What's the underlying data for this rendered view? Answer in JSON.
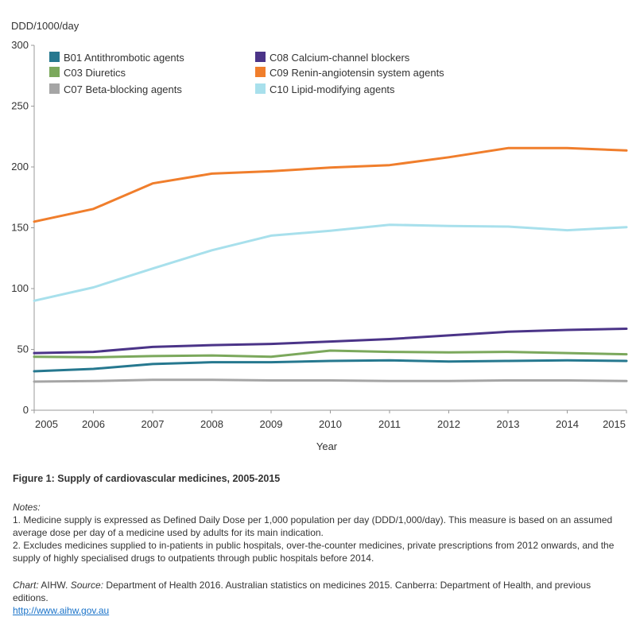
{
  "chart_data": {
    "type": "line",
    "ylabel": "DDD/1000/day",
    "xlabel": "Year",
    "ylim": [
      0,
      300
    ],
    "xlim": [
      2005,
      2015
    ],
    "yticks": [
      0,
      50,
      100,
      150,
      200,
      250,
      300
    ],
    "x": [
      2005,
      2006,
      2007,
      2008,
      2009,
      2010,
      2011,
      2012,
      2013,
      2014,
      2015
    ],
    "grid": false,
    "legend_position": "top",
    "series": [
      {
        "name": "B01 Antithrombotic agents",
        "color": "#26788f",
        "values": [
          32,
          34,
          38,
          39.5,
          39.5,
          40.5,
          41,
          40,
          40.5,
          41,
          40.5
        ]
      },
      {
        "name": "C03 Diuretics",
        "color": "#7ba85c",
        "values": [
          44,
          43.5,
          44.5,
          45,
          44,
          49,
          48,
          47.5,
          48,
          47,
          46
        ]
      },
      {
        "name": "C07 Beta-blocking agents",
        "color": "#a5a5a5",
        "values": [
          23.5,
          24,
          25,
          25,
          24.5,
          24.5,
          24,
          24,
          24.5,
          24.5,
          24
        ]
      },
      {
        "name": "C08 Calcium-channel blockers",
        "color": "#4b3488",
        "values": [
          47,
          48,
          52,
          53.5,
          54.5,
          56.5,
          58.5,
          61.5,
          64.5,
          66,
          67
        ]
      },
      {
        "name": "C09 Renin-angiotensin system agents",
        "color": "#f07e2c",
        "values": [
          155,
          165.5,
          186.5,
          194.5,
          196.5,
          199.5,
          201.5,
          208,
          215.5,
          215.5,
          213.5
        ]
      },
      {
        "name": "C10 Lipid-modifying agents",
        "color": "#a8e0ec",
        "values": [
          90,
          101,
          116.5,
          131.5,
          143.5,
          147.5,
          152.5,
          151.5,
          151,
          148,
          150.5
        ]
      }
    ]
  },
  "caption": {
    "title": "Figure 1: Supply of cardiovascular medicines, 2005-2015",
    "notes_heading": "Notes:",
    "note1": "1. Medicine supply is expressed as Defined Daily Dose per 1,000 population per day (DDD/1,000/day). This measure is based on an assumed average dose per day of a medicine used by adults for its main indication.",
    "note2": "2. Excludes medicines supplied to in-patients in public hospitals, over-the-counter medicines, private prescriptions from 2012 onwards, and the supply of highly specialised drugs to outpatients through public hospitals before 2014.",
    "chart_label": "Chart:",
    "chart_value": " AIHW. ",
    "source_label": "Source:",
    "source_value": " Department of Health 2016. Australian statistics on medicines 2015. Canberra: Department of Health, and previous editions.",
    "link": "http://www.aihw.gov.au"
  }
}
